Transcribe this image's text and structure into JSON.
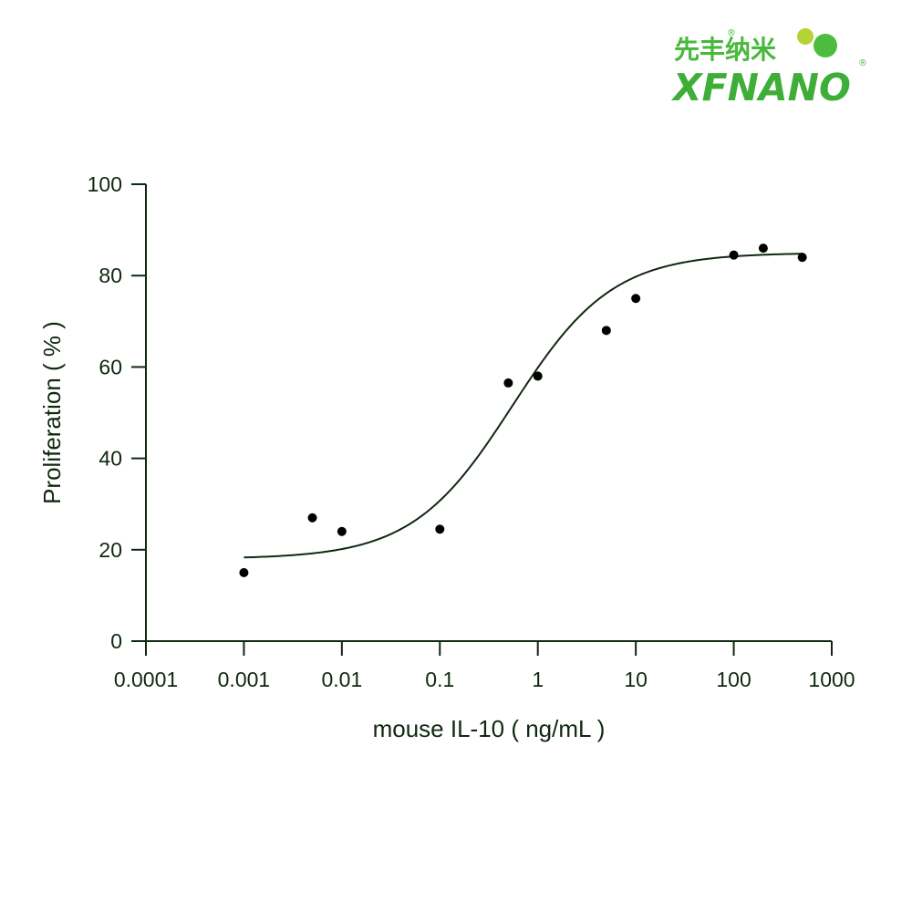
{
  "logo": {
    "name_cn": "先丰纳米",
    "name_en": "XFNANO",
    "registered_mark": "®",
    "colors": {
      "green": "#3fae38",
      "light_green": "#b5d334"
    }
  },
  "chart_data": {
    "type": "scatter",
    "title": "",
    "xlabel": "mouse IL-10 ( ng/mL )",
    "ylabel": "Proliferation ( % )",
    "x_scale": "log",
    "xlim": [
      0.0001,
      1000
    ],
    "ylim": [
      0,
      100
    ],
    "x_ticks": [
      "0.0001",
      "0.001",
      "0.01",
      "0.1",
      "1",
      "10",
      "100",
      "1000"
    ],
    "y_ticks": [
      "0",
      "20",
      "40",
      "60",
      "80",
      "100"
    ],
    "grid": false,
    "series": [
      {
        "points": [
          {
            "x": 0.001,
            "y": 15
          },
          {
            "x": 0.005,
            "y": 27
          },
          {
            "x": 0.01,
            "y": 24
          },
          {
            "x": 0.1,
            "y": 24.5
          },
          {
            "x": 0.5,
            "y": 56.5
          },
          {
            "x": 1,
            "y": 58
          },
          {
            "x": 5,
            "y": 68
          },
          {
            "x": 10,
            "y": 75
          },
          {
            "x": 100,
            "y": 84.5
          },
          {
            "x": 200,
            "y": 86
          },
          {
            "x": 500,
            "y": 84
          }
        ],
        "fit_curve": {
          "model": "four-parameter logistic",
          "bottom": 18,
          "top": 85,
          "ec50": 0.55,
          "hill_slope": 0.85
        }
      }
    ],
    "colors": {
      "axis": "#102810",
      "curve": "#102810",
      "points": "#000000"
    }
  }
}
